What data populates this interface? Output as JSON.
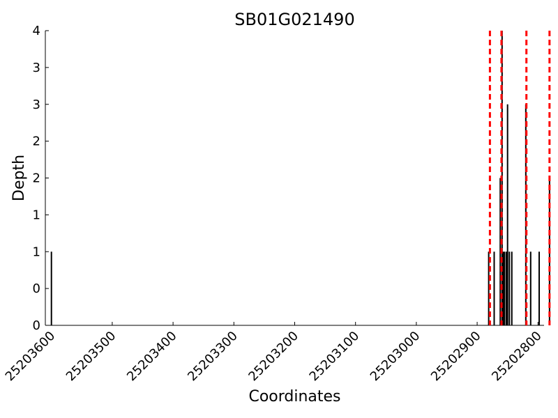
{
  "chart_data": {
    "type": "bar",
    "title": "SB01G021490",
    "xlabel": "Coordinates",
    "ylabel": "Depth",
    "x_reversed": true,
    "xlim": [
      25203610,
      25202790
    ],
    "ylim": [
      0,
      4
    ],
    "x_ticks": [
      25203600,
      25203500,
      25203400,
      25203300,
      25203200,
      25203100,
      25203000,
      25202900,
      25202800
    ],
    "x_tick_labels": [
      "25203600",
      "25203500",
      "25203400",
      "25203300",
      "25203200",
      "25203100",
      "25203000",
      "25202900",
      "25202800"
    ],
    "y_ticks": [
      0,
      0.5,
      1,
      1.5,
      2,
      2.5,
      3,
      3.5,
      4
    ],
    "y_tick_labels": [
      "0",
      "0",
      "1",
      "1",
      "2",
      "2",
      "3",
      "3",
      "4"
    ],
    "grid": false,
    "series": [
      {
        "color": "#000000",
        "points": [
          {
            "x": 25203600,
            "y": 1
          },
          {
            "x": 25202881,
            "y": 1
          },
          {
            "x": 25202872,
            "y": 1
          },
          {
            "x": 25202862,
            "y": 2
          },
          {
            "x": 25202859,
            "y": 4
          },
          {
            "x": 25202857,
            "y": 1
          },
          {
            "x": 25202855,
            "y": 1
          },
          {
            "x": 25202852,
            "y": 1
          },
          {
            "x": 25202850,
            "y": 3
          },
          {
            "x": 25202847,
            "y": 1
          },
          {
            "x": 25202843,
            "y": 1
          },
          {
            "x": 25202820,
            "y": 3
          },
          {
            "x": 25202812,
            "y": 1
          },
          {
            "x": 25202798,
            "y": 1
          },
          {
            "x": 25202781,
            "y": 2
          }
        ]
      }
    ],
    "reference_lines": {
      "color": "#ff0000",
      "style": "dashed",
      "x": [
        25202879,
        25202860,
        25202819,
        25202781
      ]
    }
  }
}
